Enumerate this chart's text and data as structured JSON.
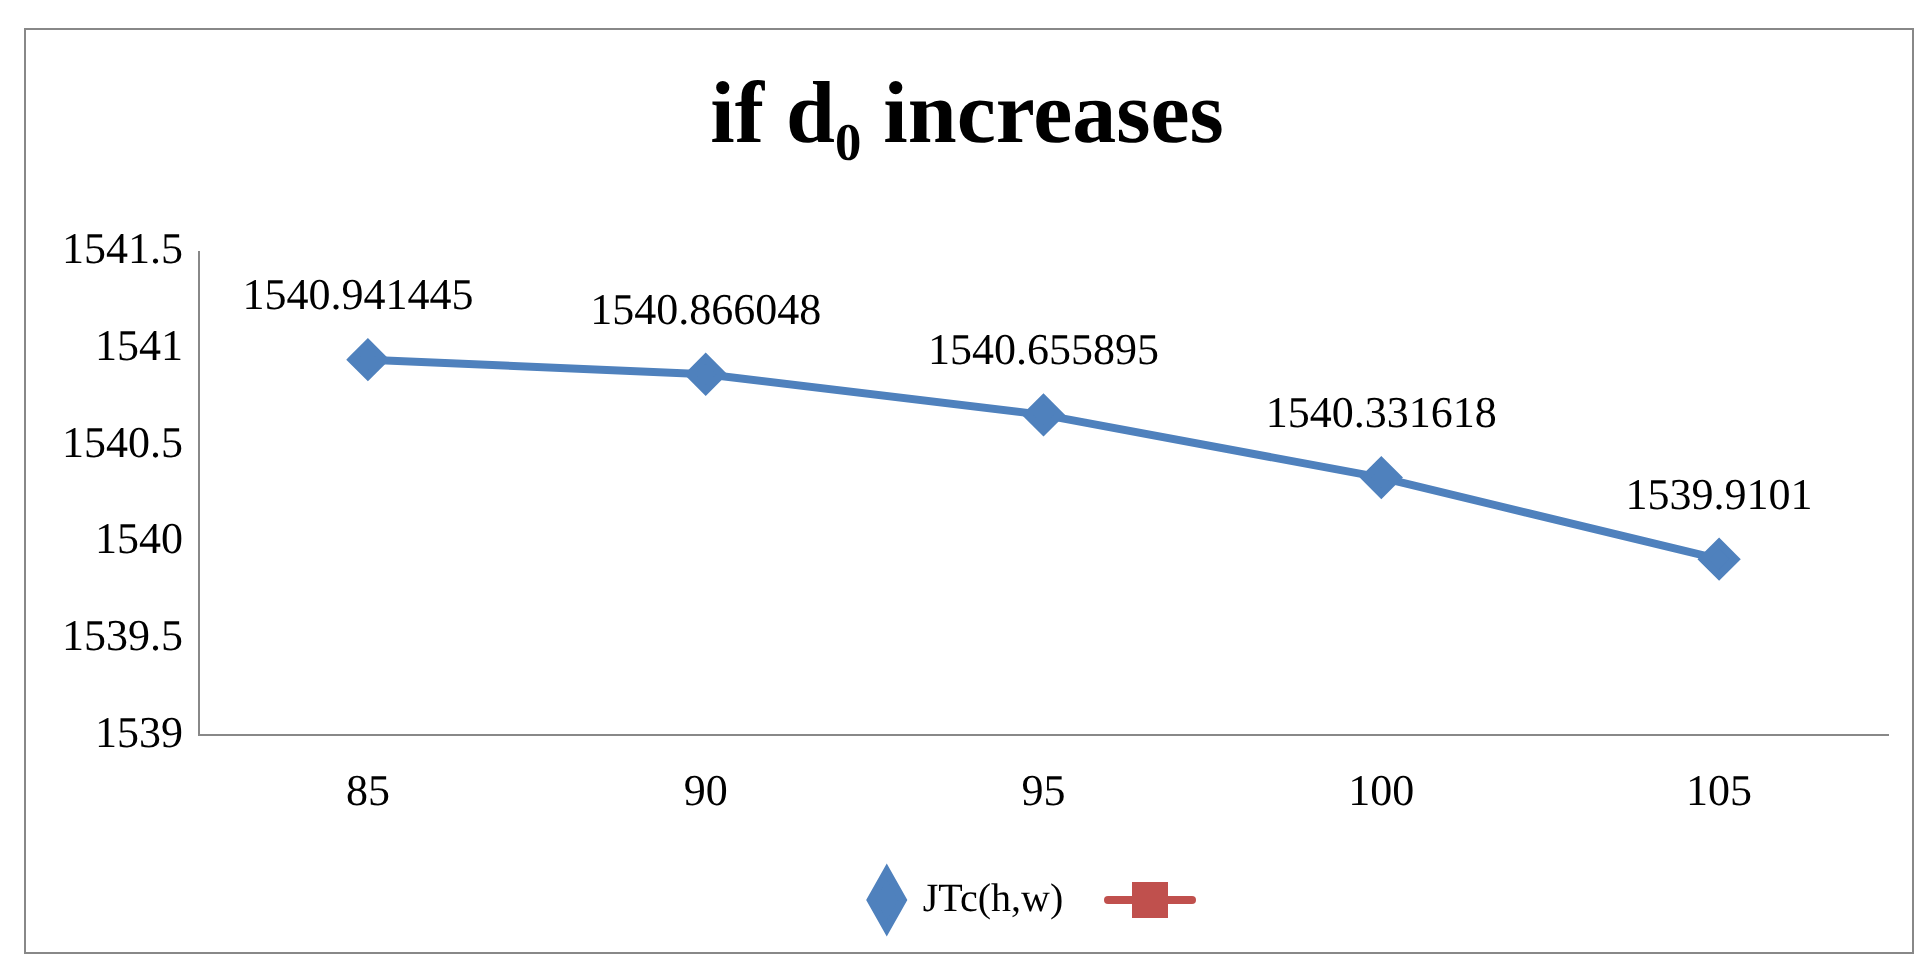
{
  "chart_data": {
    "type": "line",
    "title": "if d₀ increases",
    "categories": [
      "85",
      "90",
      "95",
      "100",
      "105"
    ],
    "series": [
      {
        "name": "JTc(h,w)",
        "color": "#4f81bd",
        "values": [
          1540.941445,
          1540.866048,
          1540.655895,
          1540.331618,
          1539.9101
        ],
        "marker": "diamond"
      }
    ],
    "ylim": [
      1539,
      1541.5
    ],
    "yticks": [
      1539,
      1539.5,
      1540,
      1540.5,
      1541,
      1541.5
    ],
    "grid": false,
    "legend": "bottom",
    "data_labels": true,
    "line_style": "solid"
  }
}
